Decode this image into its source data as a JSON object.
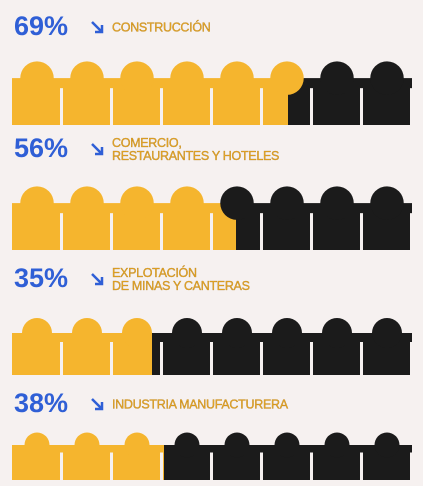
{
  "chart_data": {
    "type": "pictorial",
    "categories": [
      [
        "CONSTRUCCIÓN"
      ],
      [
        "COMERCIO,",
        "RESTAURANTES Y HOTELES"
      ],
      [
        "EXPLOTACIÓN",
        "DE MINAS Y CANTERAS"
      ],
      [
        "INDUSTRIA MANUFACTURERA"
      ]
    ],
    "values": [
      69,
      56,
      35,
      38
    ],
    "value_labels": [
      "69%",
      "56%",
      "35%",
      "38%"
    ],
    "xlim": [
      0,
      100
    ],
    "color": "#f5b52e",
    "rest_color": "#1b1b1b",
    "label_color": "#2f5fd6"
  }
}
